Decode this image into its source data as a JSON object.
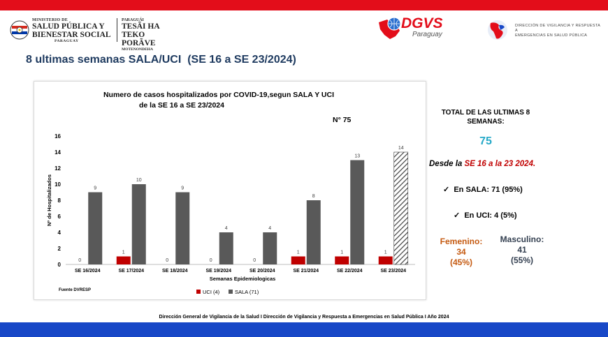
{
  "header": {
    "ministry_l1": "MINISTERIO DE",
    "ministry_l2": "SALUD PÚBLICA Y",
    "ministry_l3": "BIENESTAR SOCIAL",
    "ministry_l4": "PARAGUAY",
    "guarani_l1": "PARAGUÁI",
    "guarani_l2": "TESÃI HA TEKO",
    "guarani_l3": "PORÃVE",
    "guarani_l4": "MOTENONDEHA",
    "dgvs": "DGVS",
    "dgvs_sub": "Paraguay",
    "dvr_l1": "DIRECCIÓN DE VIGILANCIA Y RESPUESTA A",
    "dvr_l2": "EMERGENCIAS EN SALUD PÚBLICA"
  },
  "page_title": "8 ultimas semanas SALA/UCI  (SE 16 a SE 23/2024)",
  "side": {
    "total_heading_l1": "TOTAL DE LAS ULTIMAS 8",
    "total_heading_l2": "SEMANAS:",
    "total_value": "75",
    "desde_prefix": "Desde la ",
    "desde_range": "SE 16 a la 23 2024.",
    "sala": "En SALA: 71 (95%)",
    "uci": "En UCI: 4 (5%)",
    "check": "✓",
    "femenino_label": "Femenino:",
    "femenino_count": "34",
    "femenino_pct": "(45%)",
    "masculino_label": "Masculino:",
    "masculino_count": "41",
    "masculino_pct": "(55%)"
  },
  "footer": "Dirección General de Vigilancia de la Salud I Dirección de Vigilancia y Respuesta a Emergencias en Salud Pública I Año 2024",
  "colors": {
    "uci": "#c00000",
    "sala": "#595959",
    "top_bar": "#e30d1a",
    "bottom_bar": "#1848c7",
    "title": "#1f3b60",
    "total_value": "#26a9c8"
  },
  "chart_data": {
    "type": "bar",
    "title_l1": "Numero de casos hospitalizados por COVID-19,segun SALA Y UCI",
    "title_l2": "de la SE 16 a SE 23/2024",
    "annotation": "N° 75",
    "source": "Fuente DVRESP",
    "xlabel": "Semanas Epidemiologicas",
    "ylabel": "Nº de Hospitalizados",
    "ylim": [
      0,
      16
    ],
    "yticks": [
      "0",
      "2",
      "4",
      "6",
      "8",
      "10",
      "12",
      "14",
      "16"
    ],
    "categories": [
      "SE 16/2024",
      "SE 17/2024",
      "SE 18/2024",
      "SE 19/2024",
      "SE 20/2024",
      "SE 21/2024",
      "SE 22/2024",
      "SE 23/2024"
    ],
    "series": [
      {
        "name": "UCI (4)",
        "values": [
          0,
          1,
          0,
          0,
          0,
          1,
          1,
          1
        ]
      },
      {
        "name": "SALA (71)",
        "values": [
          9,
          10,
          9,
          4,
          4,
          8,
          13,
          14
        ]
      }
    ],
    "last_sala_bar_hatched": true,
    "grid": false,
    "legend_position": "bottom"
  }
}
